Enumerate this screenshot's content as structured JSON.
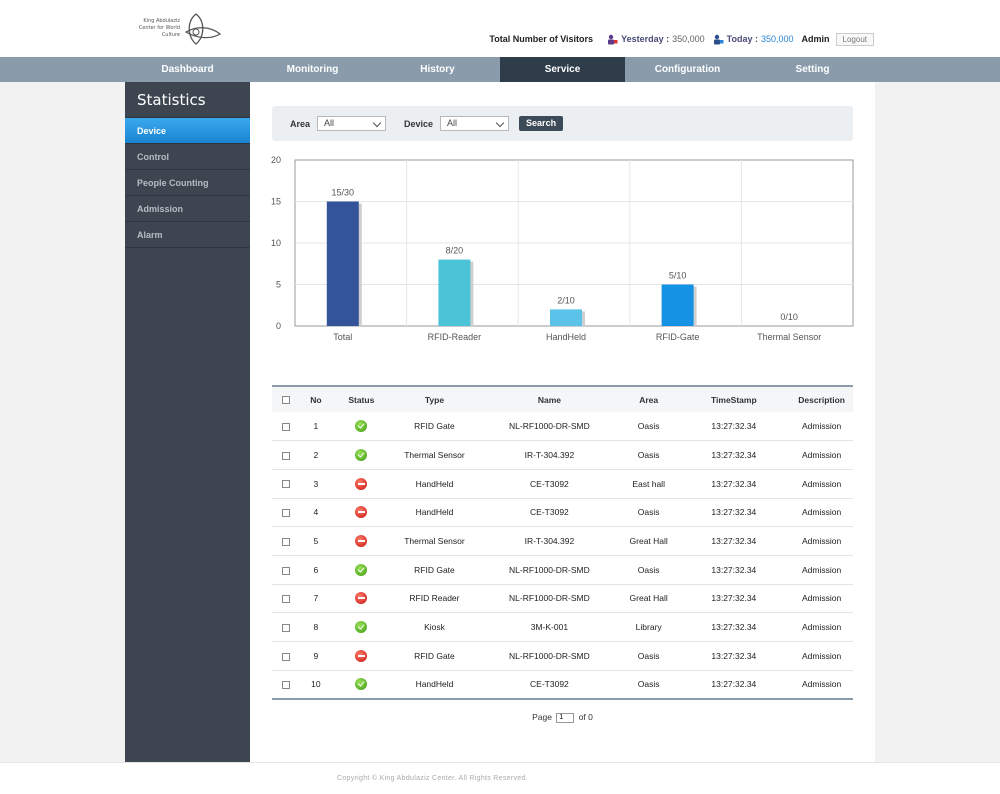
{
  "header": {
    "logo_text_line1": "King Abdulaziz",
    "logo_text_line2": "Center for World Culture",
    "visitors_title": "Total Number of Visitors",
    "yesterday_label": "Yesterday :",
    "yesterday_value": "350,000",
    "today_label": "Today :",
    "today_value": "350,000",
    "user": "Admin",
    "logout_label": "Logout"
  },
  "nav": {
    "items": [
      {
        "label": "Dashboard"
      },
      {
        "label": "Monitoring"
      },
      {
        "label": "History"
      },
      {
        "label": "Service"
      },
      {
        "label": "Configuration"
      },
      {
        "label": "Setting"
      }
    ],
    "active": "Service"
  },
  "sidebar": {
    "title": "Statistics",
    "items": [
      {
        "label": "Device"
      },
      {
        "label": "Control"
      },
      {
        "label": "People Counting"
      },
      {
        "label": "Admission"
      },
      {
        "label": "Alarm"
      }
    ],
    "active": "Device"
  },
  "filter": {
    "area_label": "Area",
    "area_value": "All",
    "device_label": "Device",
    "device_value": "All",
    "search_label": "Search"
  },
  "chart_data": {
    "type": "bar",
    "categories": [
      "Total",
      "RFID-Reader",
      "HandHeld",
      "RFID-Gate",
      "Thermal Sensor"
    ],
    "values": [
      15,
      8,
      2,
      5,
      0
    ],
    "data_labels": [
      "15/30",
      "8/20",
      "2/10",
      "5/10",
      "0/10"
    ],
    "colors": [
      "#33549a",
      "#4cc4d8",
      "#5bc2ea",
      "#1592e3",
      "#8fb0d0"
    ],
    "ylim": [
      0,
      20
    ],
    "yticks": [
      0,
      5,
      10,
      15,
      20
    ],
    "grid": true
  },
  "table": {
    "headers": [
      "No",
      "Status",
      "Type",
      "Name",
      "Area",
      "TimeStamp",
      "Description"
    ],
    "rows": [
      {
        "no": "1",
        "status": "ok",
        "type": "RFID Gate",
        "name": "NL-RF1000-DR-SMD",
        "area": "Oasis",
        "ts": "13:27:32.34",
        "desc": "Admission"
      },
      {
        "no": "2",
        "status": "ok",
        "type": "Thermal Sensor",
        "name": "IR-T-304.392",
        "area": "Oasis",
        "ts": "13:27:32.34",
        "desc": "Admission"
      },
      {
        "no": "3",
        "status": "error",
        "type": "HandHeld",
        "name": "CE-T3092",
        "area": "East hall",
        "ts": "13:27:32.34",
        "desc": "Admission"
      },
      {
        "no": "4",
        "status": "error",
        "type": "HandHeld",
        "name": "CE-T3092",
        "area": "Oasis",
        "ts": "13:27:32.34",
        "desc": "Admission"
      },
      {
        "no": "5",
        "status": "error",
        "type": "Thermal Sensor",
        "name": "IR-T-304.392",
        "area": "Great Hall",
        "ts": "13:27:32.34",
        "desc": "Admission"
      },
      {
        "no": "6",
        "status": "ok",
        "type": "RFID Gate",
        "name": "NL-RF1000-DR-SMD",
        "area": "Oasis",
        "ts": "13:27:32.34",
        "desc": "Admission"
      },
      {
        "no": "7",
        "status": "error",
        "type": "RFID Reader",
        "name": "NL-RF1000-DR-SMD",
        "area": "Great Hall",
        "ts": "13:27:32.34",
        "desc": "Admission"
      },
      {
        "no": "8",
        "status": "ok",
        "type": "Kiosk",
        "name": "3M-K-001",
        "area": "Library",
        "ts": "13:27:32.34",
        "desc": "Admission"
      },
      {
        "no": "9",
        "status": "error",
        "type": "RFID Gate",
        "name": "NL-RF1000-DR-SMD",
        "area": "Oasis",
        "ts": "13:27:32.34",
        "desc": "Admission"
      },
      {
        "no": "10",
        "status": "ok",
        "type": "HandHeld",
        "name": "CE-T3092",
        "area": "Oasis",
        "ts": "13:27:32.34",
        "desc": "Admission"
      }
    ]
  },
  "pager": {
    "page_label": "Page",
    "page_value": "1",
    "of_label": "of 0"
  },
  "footer": {
    "copyright": "Copyright © King Abdulaziz Center. All Rights Reserved."
  }
}
